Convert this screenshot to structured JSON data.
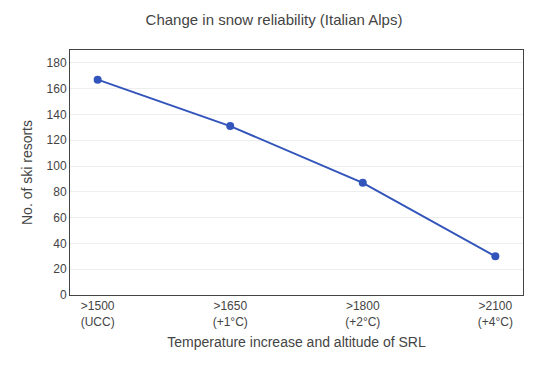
{
  "chart_data": {
    "type": "line",
    "title": "Change in snow reliability (Italian Alps)",
    "categories": [
      ">1500\n(UCC)",
      ">1650\n(+1°C)",
      ">1800\n(+2°C)",
      ">2100\n(+4°C)"
    ],
    "values": [
      167,
      131,
      87,
      30
    ],
    "color": "#3355bb",
    "marker": "circle",
    "xlabel": "Temperature increase and altitude of SRL",
    "ylabel": "No. of ski resorts",
    "ylim": [
      0,
      190
    ],
    "yticks": [
      0,
      20,
      40,
      60,
      80,
      100,
      120,
      140,
      160,
      180
    ],
    "grid": true
  }
}
